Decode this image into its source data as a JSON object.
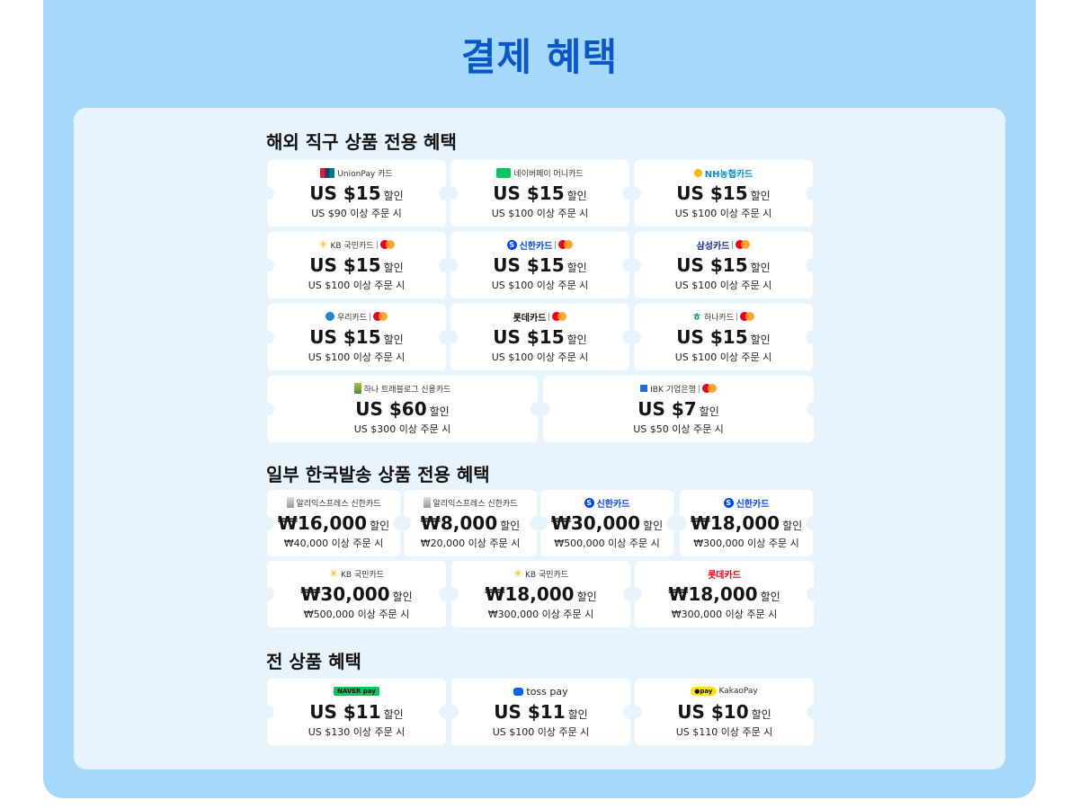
{
  "title": "결제 혜택",
  "colors": {
    "title": "#0a57c9",
    "outer_bg": "#a5d8fd",
    "inner_bg": "#e7f4fe",
    "naver": "#03c75a",
    "kakao": "#fee500",
    "toss": "#0064ff",
    "shinhan": "#0046ff",
    "lotte": "#e60012",
    "mastercard_red": "#eb001b",
    "mastercard_yellow": "#f79e1b"
  },
  "sections": [
    {
      "title": "해외 직구 상품 전용 혜택",
      "coupons": [
        {
          "brand": "UnionPay 카드",
          "icon": "unionpay-logo",
          "amount": "US $15",
          "unit": "할인",
          "condition": "US $90 이상 주문 시"
        },
        {
          "brand": "네이버페이 머니카드",
          "icon": "naverpay-money-logo",
          "amount": "US $15",
          "unit": "할인",
          "condition": "US $100 이상 주문 시"
        },
        {
          "brand": "NH농협카드",
          "icon": "nh-logo",
          "amount": "US $15",
          "unit": "할인",
          "condition": "US $100 이상 주문 시"
        },
        {
          "brand": "KB 국민카드",
          "icon": "kb-star-logo",
          "mastercard": true,
          "amount": "US $15",
          "unit": "할인",
          "condition": "US $100 이상 주문 시"
        },
        {
          "brand": "신한카드",
          "icon": "shinhan-logo",
          "mastercard": true,
          "amount": "US $15",
          "unit": "할인",
          "condition": "US $100 이상 주문 시"
        },
        {
          "brand": "삼성카드",
          "icon": "samsung-logo",
          "mastercard": true,
          "amount": "US $15",
          "unit": "할인",
          "condition": "US $100 이상 주문 시"
        },
        {
          "brand": "우리카드",
          "icon": "woori-logo",
          "mastercard": true,
          "amount": "US $15",
          "unit": "할인",
          "condition": "US $100 이상 주문 시"
        },
        {
          "brand": "롯데카드",
          "icon": "lotte-logo",
          "mastercard": true,
          "amount": "US $15",
          "unit": "할인",
          "condition": "US $100 이상 주문 시"
        },
        {
          "brand": "하나카드",
          "icon": "hana-logo",
          "mastercard": true,
          "amount": "US $15",
          "unit": "할인",
          "condition": "US $100 이상 주문 시"
        },
        {
          "brand": "하나 트래블로그 신용카드",
          "icon": "travellog-card-icon",
          "amount": "US $60",
          "unit": "할인",
          "condition": "US $300 이상 주문 시"
        },
        {
          "brand": "IBK 기업은행",
          "icon": "ibk-logo",
          "mastercard": true,
          "amount": "US $7",
          "unit": "할인",
          "condition": "US $50 이상 주문 시"
        }
      ]
    },
    {
      "title": "일부 한국발송 상품 전용 혜택",
      "coupons": [
        {
          "brand": "알리익스프레스 신한카드",
          "icon": "aliexpress-card-icon",
          "amount": "₩16,000",
          "unit": "할인",
          "condition": "₩40,000 이상 주문 시"
        },
        {
          "brand": "알리익스프레스 신한카드",
          "icon": "aliexpress-card-icon",
          "amount": "₩8,000",
          "unit": "할인",
          "condition": "₩20,000 이상 주문 시"
        },
        {
          "brand": "신한카드",
          "icon": "shinhan-logo",
          "amount": "₩30,000",
          "unit": "할인",
          "condition": "₩500,000 이상 주문 시"
        },
        {
          "brand": "신한카드",
          "icon": "shinhan-logo",
          "amount": "₩18,000",
          "unit": "할인",
          "condition": "₩300,000 이상 주문 시"
        },
        {
          "brand": "KB 국민카드",
          "icon": "kb-star-logo",
          "amount": "₩30,000",
          "unit": "할인",
          "condition": "₩500,000 이상 주문 시"
        },
        {
          "brand": "KB 국민카드",
          "icon": "kb-star-logo",
          "amount": "₩18,000",
          "unit": "할인",
          "condition": "₩300,000 이상 주문 시"
        },
        {
          "brand": "롯데카드",
          "icon": "lotte-logo",
          "amount": "₩18,000",
          "unit": "할인",
          "condition": "₩300,000 이상 주문 시"
        }
      ]
    },
    {
      "title": "전 상품 혜택",
      "coupons": [
        {
          "brand": "NAVER pay",
          "icon": "naverpay-logo",
          "amount": "US $11",
          "unit": "할인",
          "condition": "US $130 이상 주문 시"
        },
        {
          "brand": "toss pay",
          "icon": "tosspay-logo",
          "amount": "US $11",
          "unit": "할인",
          "condition": "US $100 이상 주문 시"
        },
        {
          "brand": "KakaoPay",
          "icon": "kakaopay-logo",
          "amount": "US $10",
          "unit": "할인",
          "condition": "US $110 이상 주문 시"
        }
      ]
    }
  ]
}
